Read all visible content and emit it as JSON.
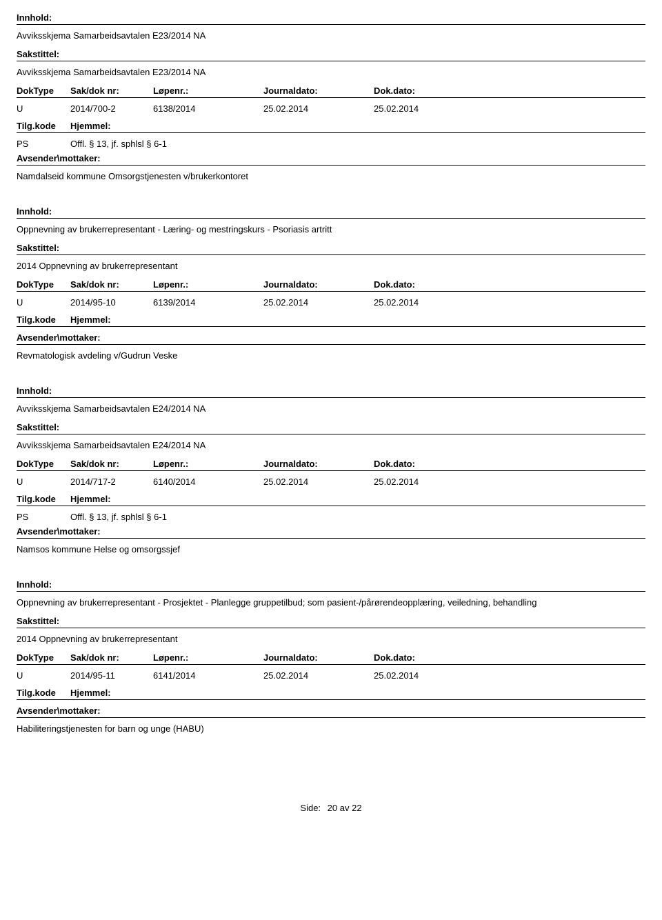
{
  "labels": {
    "innhold": "Innhold:",
    "sakstittel": "Sakstittel:",
    "doktype": "DokType",
    "sakdok": "Sak/dok nr:",
    "lopenr": "Løpenr.:",
    "journaldato": "Journaldato:",
    "dokdato": "Dok.dato:",
    "tilgkode": "Tilg.kode",
    "hjemmel": "Hjemmel:",
    "avsender": "Avsender\\mottaker:"
  },
  "records": [
    {
      "innhold": "Avviksskjema Samarbeidsavtalen E23/2014 NA",
      "sakstittel": "Avviksskjema Samarbeidsavtalen E23/2014 NA",
      "doktype": "U",
      "sakdok": "2014/700-2",
      "lopenr": "6138/2014",
      "journaldato": "25.02.2014",
      "dokdato": "25.02.2014",
      "ps_code": "PS",
      "ps_text": "Offl. § 13, jf. sphlsl § 6-1",
      "avsender": "Namdalseid kommune Omsorgstjenesten v/brukerkontoret"
    },
    {
      "innhold": "Oppnevning av brukerrepresentant - Læring- og mestringskurs - Psoriasis artritt",
      "sakstittel": "2014 Oppnevning av brukerrepresentant",
      "doktype": "U",
      "sakdok": "2014/95-10",
      "lopenr": "6139/2014",
      "journaldato": "25.02.2014",
      "dokdato": "25.02.2014",
      "ps_code": "",
      "ps_text": "",
      "avsender": "Revmatologisk avdeling v/Gudrun Veske"
    },
    {
      "innhold": "Avviksskjema Samarbeidsavtalen E24/2014 NA",
      "sakstittel": "Avviksskjema Samarbeidsavtalen E24/2014 NA",
      "doktype": "U",
      "sakdok": "2014/717-2",
      "lopenr": "6140/2014",
      "journaldato": "25.02.2014",
      "dokdato": "25.02.2014",
      "ps_code": "PS",
      "ps_text": "Offl. § 13, jf. sphlsl § 6-1",
      "avsender": "Namsos kommune Helse og omsorgssjef"
    },
    {
      "innhold": "Oppnevning av brukerrepresentant - Prosjektet - Planlegge gruppetilbud; som pasient-/pårørendeopplæring, veiledning, behandling",
      "sakstittel": "2014 Oppnevning av brukerrepresentant",
      "doktype": "U",
      "sakdok": "2014/95-11",
      "lopenr": "6141/2014",
      "journaldato": "25.02.2014",
      "dokdato": "25.02.2014",
      "ps_code": "",
      "ps_text": "",
      "avsender": "Habiliteringstjenesten for barn og unge (HABU)"
    }
  ],
  "footer": {
    "side_label": "Side:",
    "page": "20",
    "av": "av",
    "total": "22"
  }
}
